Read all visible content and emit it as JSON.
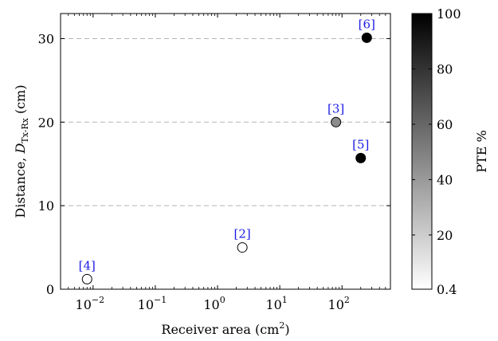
{
  "chart_data": {
    "type": "scatter",
    "title": "",
    "xlabel": {
      "text": "Receiver area (cm",
      "superscript": "2",
      "suffix": ")"
    },
    "ylabel": {
      "prefix": "Distance, ",
      "symbol": "D",
      "subscript": "Tx-Rx",
      "suffix": " (cm)"
    },
    "xscale": "log",
    "xlim": [
      0.003,
      600
    ],
    "ylim": [
      0,
      33
    ],
    "grid": "y-dashed",
    "x_tick_values": [
      0.01,
      0.1,
      1,
      10,
      100
    ],
    "x_tick_labels": [
      {
        "base": "10",
        "exp": "−2"
      },
      {
        "base": "10",
        "exp": "−1"
      },
      {
        "base": "10",
        "exp": "0"
      },
      {
        "base": "10",
        "exp": "1"
      },
      {
        "base": "10",
        "exp": "2"
      }
    ],
    "y_ticks": [
      0,
      10,
      20,
      30
    ],
    "y_tick_labels": [
      "0",
      "10",
      "20",
      "30"
    ],
    "colorbar": {
      "label": "PTE %",
      "min": 0.4,
      "max": 100,
      "ticks": [
        0.4,
        20,
        40,
        60,
        80,
        100
      ],
      "tick_labels": [
        "0.4",
        "20",
        "40",
        "60",
        "80",
        "100"
      ],
      "color_low": "#ffffff",
      "color_high": "#000000"
    },
    "points": [
      {
        "label": "[4]",
        "x": 0.008,
        "y": 1.2,
        "pte": 0.4
      },
      {
        "label": "[2]",
        "x": 2.5,
        "y": 5.0,
        "pte": 0.4
      },
      {
        "label": "[3]",
        "x": 80,
        "y": 20.0,
        "pte": 45
      },
      {
        "label": "[5]",
        "x": 200,
        "y": 15.7,
        "pte": 100
      },
      {
        "label": "[6]",
        "x": 250,
        "y": 30.1,
        "pte": 100
      }
    ],
    "annotation_color": "#1a1ae6",
    "grid_color": "#b5b5b5"
  }
}
